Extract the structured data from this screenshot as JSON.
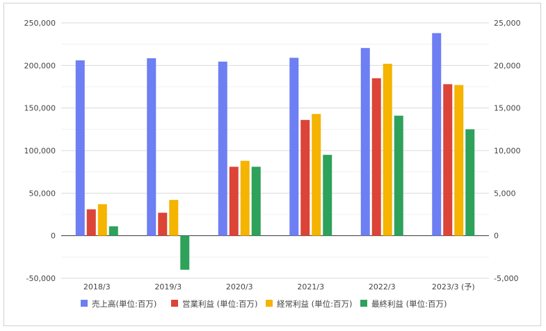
{
  "chart_data": {
    "type": "bar",
    "categories": [
      "2018/3",
      "2019/3",
      "2020/3",
      "2021/3",
      "2022/3",
      "2023/3 (予)"
    ],
    "series": [
      {
        "name": "売上高(単位:百万)",
        "axis": "left",
        "color": "#6d7ff2",
        "values": [
          206000,
          208500,
          204500,
          209000,
          220500,
          238000
        ]
      },
      {
        "name": "営業利益 (単位:百万)",
        "axis": "right",
        "color": "#db4437",
        "values": [
          3100,
          2700,
          8100,
          13600,
          18500,
          17800
        ]
      },
      {
        "name": "経常利益 (単位:百万)",
        "axis": "right",
        "color": "#f4b400",
        "values": [
          3700,
          4200,
          8800,
          14300,
          20200,
          17700
        ]
      },
      {
        "name": "最終利益 (単位:百万)",
        "axis": "right",
        "color": "#2ea15a",
        "values": [
          1100,
          -4000,
          8100,
          9500,
          14100,
          12500
        ]
      }
    ],
    "left_axis": {
      "ylim": [
        -50000,
        250000
      ],
      "ticks": [
        250000,
        200000,
        150000,
        100000,
        50000,
        0,
        -50000
      ],
      "tick_labels": [
        "250,000",
        "200,000",
        "150,000",
        "100,000",
        "50,000",
        "0",
        "-50,000"
      ]
    },
    "right_axis": {
      "ylim": [
        -5000,
        25000
      ],
      "ticks": [
        25000,
        20000,
        15000,
        10000,
        5000,
        0,
        -5000
      ],
      "tick_labels": [
        "25,000",
        "20,000",
        "15,000",
        "10,000",
        "5,000",
        "0",
        "-5,000"
      ]
    },
    "title": "",
    "xlabel": "",
    "ylabel": "",
    "grid": true,
    "legend_position": "bottom"
  }
}
